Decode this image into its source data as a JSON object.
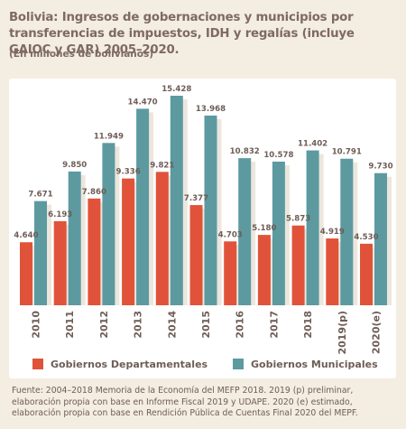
{
  "title": "Bolivia: Ingresos de gobernaciones y municipios por transferencias de impuestos, IDH y regalías (incluye GAIOC y GAR) 2005–2020.",
  "subtitle": "(En millones de bolivianos)",
  "source": "Fuente: 2004–2018 Memoria de la Economía del MEFP 2018. 2019 (p) preliminar, elaboración propia con base en Informe Fiscal 2019 y UDAPE. 2020 (e) estimado, elaboración propia con base en Rendición Pública de Cuentas Final 2020 del MEPF.",
  "colors": {
    "departamentales": "#e0533a",
    "municipales": "#5c9aa0",
    "background": "#f4ede1",
    "text": "#6e5d57"
  },
  "chart_data": {
    "type": "bar",
    "categories": [
      "2010",
      "2011",
      "2012",
      "2013",
      "2014",
      "2015",
      "2016",
      "2017",
      "2018",
      "2019(p)",
      "2020(e)"
    ],
    "series": [
      {
        "name": "Gobiernos Departamentales",
        "values": [
          4640,
          6193,
          7860,
          9336,
          9821,
          7377,
          4703,
          5180,
          5873,
          4919,
          4530
        ],
        "labels": [
          "4.640",
          "6.193",
          "7.860",
          "9.336",
          "9.821",
          "7.377",
          "4.703",
          "5.180",
          "5.873",
          "4.919",
          "4.530"
        ]
      },
      {
        "name": "Gobiernos Municipales",
        "values": [
          7671,
          9850,
          11949,
          14470,
          15428,
          13968,
          10832,
          10578,
          11402,
          10791,
          9730
        ],
        "labels": [
          "7.671",
          "9.850",
          "11.949",
          "14.470",
          "15.428",
          "13.968",
          "10.832",
          "10.578",
          "11.402",
          "10.791",
          "9.730"
        ]
      }
    ],
    "ylim": [
      0,
      16000
    ],
    "grid": false,
    "legend": "bottom"
  }
}
